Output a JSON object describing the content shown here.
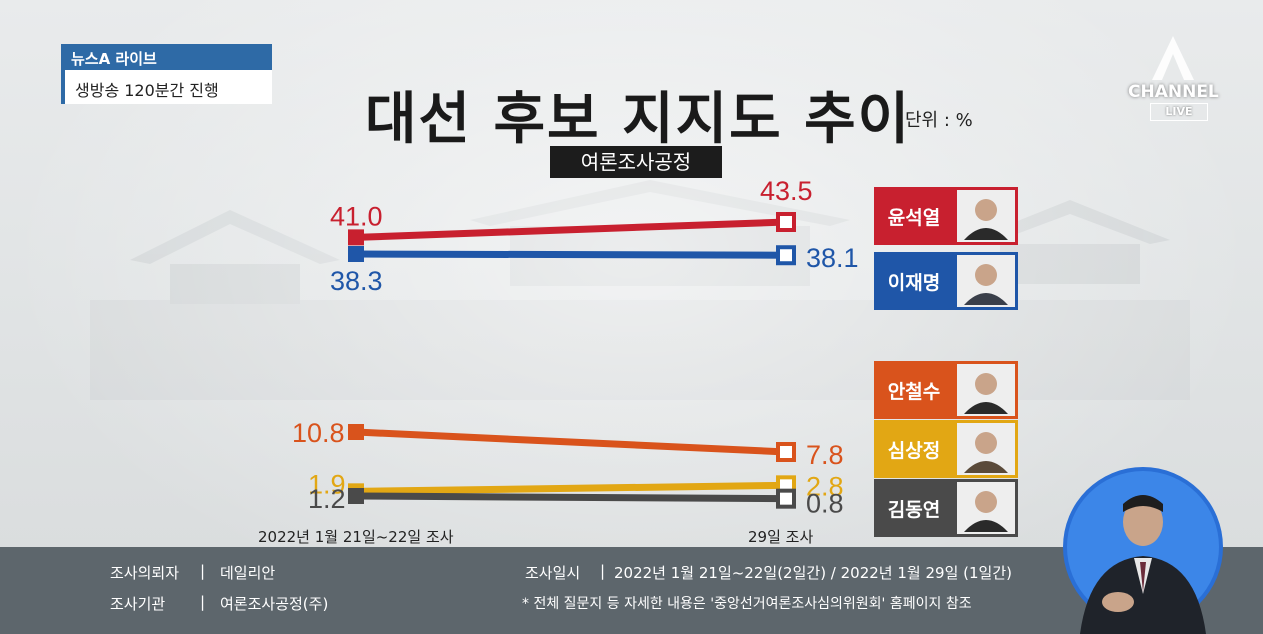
{
  "corner": {
    "program": "뉴스A 라이브",
    "caption": "생방송 120분간 진행"
  },
  "logo": {
    "channel": "CHANNEL",
    "live": "LIVE"
  },
  "title": "대선 후보 지지도 추이",
  "unit": "단위 : %",
  "source": "여론조사공정",
  "dates": {
    "start": "2022년 1월 21일~22일 조사",
    "end": "29일 조사"
  },
  "chart_data": {
    "type": "line",
    "x": [
      "2022년 1월 21일~22일 조사",
      "29일 조사"
    ],
    "series": [
      {
        "name": "윤석열",
        "values": [
          41.0,
          43.5
        ],
        "color": "#c8202f",
        "label_start": "41.0",
        "label_end": "43.5"
      },
      {
        "name": "이재명",
        "values": [
          38.3,
          38.1
        ],
        "color": "#1f56a8",
        "label_start": "38.3",
        "label_end": "38.1"
      },
      {
        "name": "안철수",
        "values": [
          10.8,
          7.8
        ],
        "color": "#d9531c",
        "label_start": "10.8",
        "label_end": "7.8"
      },
      {
        "name": "심상정",
        "values": [
          1.9,
          2.8
        ],
        "color": "#e2a714",
        "label_start": "1.9",
        "label_end": "2.8"
      },
      {
        "name": "김동연",
        "values": [
          1.2,
          0.8
        ],
        "color": "#4a4a4a",
        "label_start": "1.2",
        "label_end": "0.8"
      }
    ]
  },
  "candidates": [
    {
      "name": "윤석열",
      "color": "#c8202f"
    },
    {
      "name": "이재명",
      "color": "#1f56a8"
    },
    {
      "name": "안철수",
      "color": "#d9531c"
    },
    {
      "name": "심상정",
      "color": "#e2a714"
    },
    {
      "name": "김동연",
      "color": "#4a4a4a"
    }
  ],
  "footer": {
    "client_label": "조사의뢰자",
    "client_value": "데일리안",
    "agency_label": "조사기관",
    "agency_value": "여론조사공정(주)",
    "date_label": "조사일시",
    "date_value": "2022년 1월 21일~22일(2일간) / 2022년 1월 29일 (1일간)",
    "note": "* 전체 질문지 등 자세한 내용은 '중앙선거여론조사심의위원회' 홈페이지 참조",
    "separator": "|"
  }
}
